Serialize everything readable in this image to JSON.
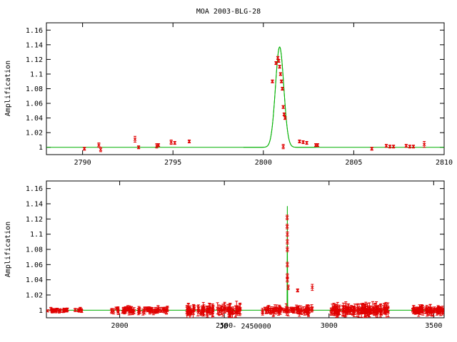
{
  "title": "MOA 2003-BLG-28",
  "colors": {
    "model": "#00b000",
    "data": "#e00000",
    "axis": "#000000"
  },
  "chart_data": [
    {
      "type": "scatter",
      "title": "MOA 2003-BLG-28",
      "xlabel": "",
      "ylabel": "Amplification",
      "xlim": [
        2788,
        2810
      ],
      "ylim": [
        0.99,
        1.17
      ],
      "xticks": [
        2790,
        2795,
        2800,
        2805,
        2810
      ],
      "yticks": [
        1,
        1.02,
        1.04,
        1.06,
        1.08,
        1.1,
        1.12,
        1.14,
        1.16
      ],
      "xtick_labels": [
        "2790",
        "2795",
        "2800",
        "2805",
        "2810"
      ],
      "ytick_labels": [
        "1",
        "1.02",
        "1.04",
        "1.06",
        "1.08",
        "1.1",
        "1.12",
        "1.14",
        "1.16"
      ],
      "grid": false,
      "model": {
        "baseline": 1.0,
        "t0": 2800.9,
        "peak": 1.137,
        "width": 0.23
      },
      "points": [
        {
          "x": 2790.1,
          "y": 0.998,
          "e": 0.002
        },
        {
          "x": 2790.9,
          "y": 1.003,
          "e": 0.003
        },
        {
          "x": 2791.0,
          "y": 0.997,
          "e": 0.003
        },
        {
          "x": 2792.9,
          "y": 1.011,
          "e": 0.004
        },
        {
          "x": 2793.1,
          "y": 1.0,
          "e": 0.002
        },
        {
          "x": 2794.1,
          "y": 1.002,
          "e": 0.003
        },
        {
          "x": 2794.2,
          "y": 1.003,
          "e": 0.002
        },
        {
          "x": 2794.9,
          "y": 1.007,
          "e": 0.003
        },
        {
          "x": 2795.1,
          "y": 1.006,
          "e": 0.002
        },
        {
          "x": 2795.9,
          "y": 1.008,
          "e": 0.002
        },
        {
          "x": 2800.5,
          "y": 1.09,
          "e": 0.002
        },
        {
          "x": 2800.7,
          "y": 1.115,
          "e": 0.002
        },
        {
          "x": 2800.8,
          "y": 1.122,
          "e": 0.002
        },
        {
          "x": 2800.85,
          "y": 1.118,
          "e": 0.002
        },
        {
          "x": 2800.9,
          "y": 1.11,
          "e": 0.002
        },
        {
          "x": 2800.95,
          "y": 1.1,
          "e": 0.002
        },
        {
          "x": 2801.0,
          "y": 1.09,
          "e": 0.002
        },
        {
          "x": 2801.05,
          "y": 1.08,
          "e": 0.002
        },
        {
          "x": 2801.1,
          "y": 1.001,
          "e": 0.003
        },
        {
          "x": 2801.1,
          "y": 1.055,
          "e": 0.002
        },
        {
          "x": 2801.15,
          "y": 1.045,
          "e": 0.002
        },
        {
          "x": 2801.2,
          "y": 1.04,
          "e": 0.002
        },
        {
          "x": 2802.0,
          "y": 1.008,
          "e": 0.002
        },
        {
          "x": 2802.2,
          "y": 1.007,
          "e": 0.002
        },
        {
          "x": 2802.4,
          "y": 1.006,
          "e": 0.002
        },
        {
          "x": 2802.9,
          "y": 1.003,
          "e": 0.002
        },
        {
          "x": 2803.0,
          "y": 1.003,
          "e": 0.002
        },
        {
          "x": 2806.0,
          "y": 0.998,
          "e": 0.002
        },
        {
          "x": 2806.8,
          "y": 1.002,
          "e": 0.002
        },
        {
          "x": 2807.0,
          "y": 1.001,
          "e": 0.002
        },
        {
          "x": 2807.2,
          "y": 1.001,
          "e": 0.002
        },
        {
          "x": 2807.9,
          "y": 1.002,
          "e": 0.002
        },
        {
          "x": 2808.1,
          "y": 1.001,
          "e": 0.002
        },
        {
          "x": 2808.3,
          "y": 1.001,
          "e": 0.002
        },
        {
          "x": 2808.9,
          "y": 1.004,
          "e": 0.004
        }
      ]
    },
    {
      "type": "scatter",
      "title": "",
      "xlabel": "JD - 2450000",
      "ylabel": "Amplification",
      "xlim": [
        1650,
        3550
      ],
      "ylim": [
        0.99,
        1.17
      ],
      "xticks": [
        2000,
        2500,
        3000,
        3500
      ],
      "yticks": [
        1,
        1.02,
        1.04,
        1.06,
        1.08,
        1.1,
        1.12,
        1.14,
        1.16
      ],
      "xtick_labels": [
        "2000",
        "2500",
        "3000",
        "3500"
      ],
      "ytick_labels": [
        "1",
        "1.02",
        "1.04",
        "1.06",
        "1.08",
        "1.1",
        "1.12",
        "1.14",
        "1.16"
      ],
      "grid": false,
      "model": {
        "baseline": 1.0,
        "t0": 2800.9,
        "peak": 1.137,
        "width": 0.23
      },
      "clusters": [
        {
          "x0": 1655,
          "x1": 1750,
          "n": 25,
          "scatter": 0.002,
          "err": 0.002
        },
        {
          "x0": 1780,
          "x1": 1820,
          "n": 8,
          "scatter": 0.002,
          "err": 0.002
        },
        {
          "x0": 1960,
          "x1": 2230,
          "n": 70,
          "scatter": 0.003,
          "err": 0.003
        },
        {
          "x0": 2320,
          "x1": 2580,
          "n": 80,
          "scatter": 0.004,
          "err": 0.006
        },
        {
          "x0": 2680,
          "x1": 2920,
          "n": 70,
          "scatter": 0.003,
          "err": 0.004
        },
        {
          "x0": 3010,
          "x1": 3290,
          "n": 110,
          "scatter": 0.004,
          "err": 0.006
        },
        {
          "x0": 3400,
          "x1": 3550,
          "n": 65,
          "scatter": 0.003,
          "err": 0.004
        }
      ],
      "points": [
        {
          "x": 2800,
          "y": 1.122,
          "e": 0.003
        },
        {
          "x": 2800,
          "y": 1.11,
          "e": 0.003
        },
        {
          "x": 2801,
          "y": 1.1,
          "e": 0.003
        },
        {
          "x": 2801,
          "y": 1.09,
          "e": 0.003
        },
        {
          "x": 2801,
          "y": 1.08,
          "e": 0.003
        },
        {
          "x": 2801,
          "y": 1.06,
          "e": 0.003
        },
        {
          "x": 2801,
          "y": 1.045,
          "e": 0.003
        },
        {
          "x": 2801,
          "y": 1.04,
          "e": 0.003
        },
        {
          "x": 2805,
          "y": 1.03,
          "e": 0.003
        },
        {
          "x": 2850,
          "y": 1.026,
          "e": 0.002
        },
        {
          "x": 2920,
          "y": 1.03,
          "e": 0.004
        }
      ]
    }
  ]
}
